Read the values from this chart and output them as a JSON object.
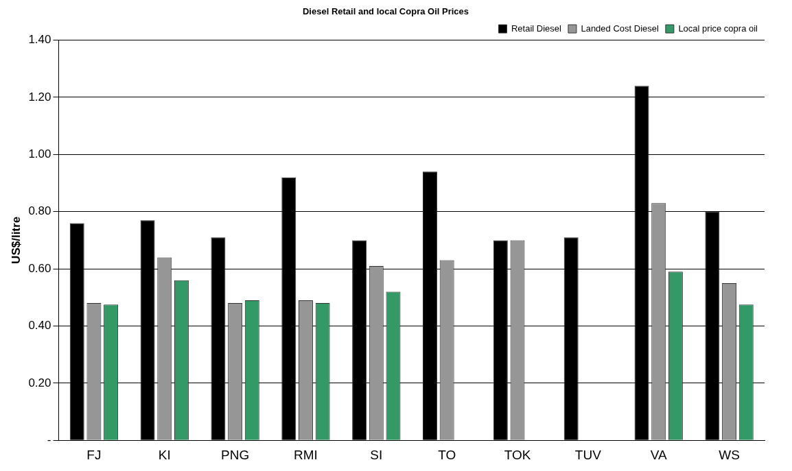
{
  "chart_data": {
    "type": "bar",
    "title": "Diesel Retail and local Copra Oil Prices",
    "ylabel": "US$/litre",
    "categories": [
      "FJ",
      "KI",
      "PNG",
      "RMI",
      "SI",
      "TO",
      "TOK",
      "TUV",
      "VA",
      "WS"
    ],
    "series": [
      {
        "name": "Retail Diesel",
        "color": "#000000",
        "values": [
          0.76,
          0.77,
          0.71,
          0.92,
          0.7,
          0.94,
          0.7,
          0.71,
          1.24,
          0.8
        ]
      },
      {
        "name": "Landed Cost Diesel",
        "color": "#969696",
        "values": [
          0.48,
          0.64,
          0.48,
          0.49,
          0.61,
          0.63,
          0.7,
          null,
          0.83,
          0.55
        ]
      },
      {
        "name": "Local price copra oil",
        "color": "#339966",
        "values": [
          0.475,
          0.56,
          0.49,
          0.48,
          0.52,
          null,
          null,
          null,
          0.59,
          0.475
        ]
      }
    ],
    "ylim": [
      0,
      1.4
    ],
    "yticks": [
      {
        "value": 0,
        "label": "-"
      },
      {
        "value": 0.2,
        "label": "0.20"
      },
      {
        "value": 0.4,
        "label": "0.40"
      },
      {
        "value": 0.6,
        "label": "0.60"
      },
      {
        "value": 0.8,
        "label": "0.80"
      },
      {
        "value": 1.0,
        "label": "1.00"
      },
      {
        "value": 1.2,
        "label": "1.20"
      },
      {
        "value": 1.4,
        "label": "1.40"
      }
    ],
    "grid": "y",
    "legend": "top right"
  }
}
